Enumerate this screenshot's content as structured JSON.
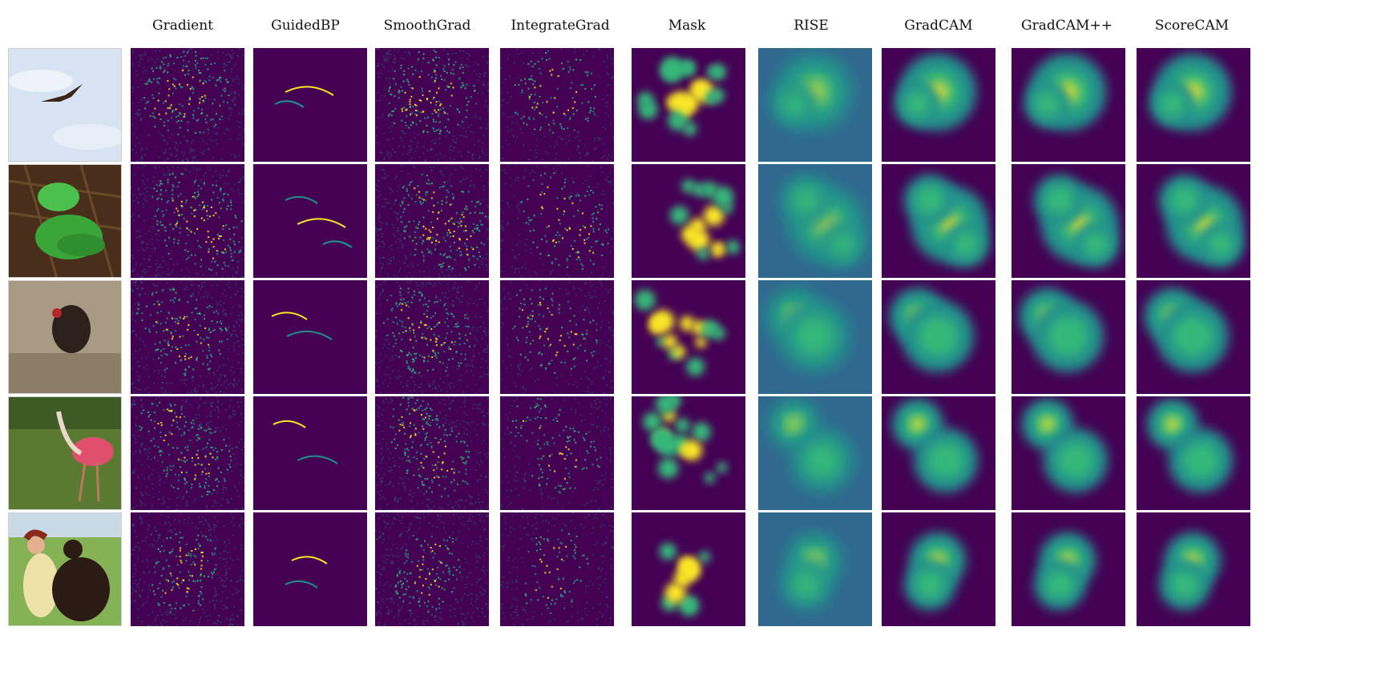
{
  "columns": [
    "Gradient",
    "GuidedBP",
    "SmoothGrad",
    "IntegrateGrad",
    "Mask",
    "RISE",
    "GradCAM",
    "GradCAM++",
    "ScoreCAM"
  ],
  "rows": [
    {
      "subject": "bird-in-sky-photo"
    },
    {
      "subject": "green-snake-photo"
    },
    {
      "subject": "vulture-photo"
    },
    {
      "subject": "spoonbill-photo"
    },
    {
      "subject": "woman-with-dog-photo"
    }
  ],
  "colors": {
    "background_map": "#440154",
    "mid_map": "#21918c",
    "high_map": "#fde725",
    "teal_map": "#35b779"
  }
}
